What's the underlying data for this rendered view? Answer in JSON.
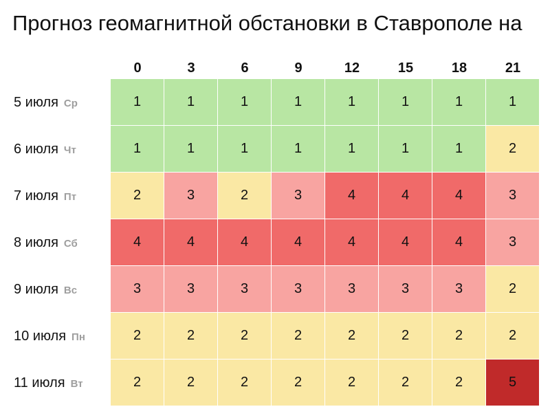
{
  "title": "Прогноз геомагнитной обстановки в Ставрополе на",
  "chart_data": {
    "type": "heatmap",
    "title": "Прогноз геомагнитной обстановки в Ставрополе на",
    "columns": [
      "0",
      "3",
      "6",
      "9",
      "12",
      "15",
      "18",
      "21"
    ],
    "rows": [
      {
        "date": "5 июля",
        "day": "Ср"
      },
      {
        "date": "6 июля",
        "day": "Чт"
      },
      {
        "date": "7 июля",
        "day": "Пт"
      },
      {
        "date": "8 июля",
        "day": "Сб"
      },
      {
        "date": "9 июля",
        "day": "Вс"
      },
      {
        "date": "10 июля",
        "day": "Пн"
      },
      {
        "date": "11 июля",
        "day": "Вт"
      }
    ],
    "values": [
      [
        1,
        1,
        1,
        1,
        1,
        1,
        1,
        1
      ],
      [
        1,
        1,
        1,
        1,
        1,
        1,
        1,
        2
      ],
      [
        2,
        3,
        2,
        3,
        4,
        4,
        4,
        3
      ],
      [
        4,
        4,
        4,
        4,
        4,
        4,
        4,
        3
      ],
      [
        3,
        3,
        3,
        3,
        3,
        3,
        3,
        2
      ],
      [
        2,
        2,
        2,
        2,
        2,
        2,
        2,
        2
      ],
      [
        2,
        2,
        2,
        2,
        2,
        2,
        2,
        5
      ]
    ],
    "level_colors": {
      "1": "#b8e6a3",
      "2": "#fae8a4",
      "3": "#f8a4a1",
      "4": "#f06a69",
      "5": "#c02a2a"
    },
    "grid": true
  }
}
